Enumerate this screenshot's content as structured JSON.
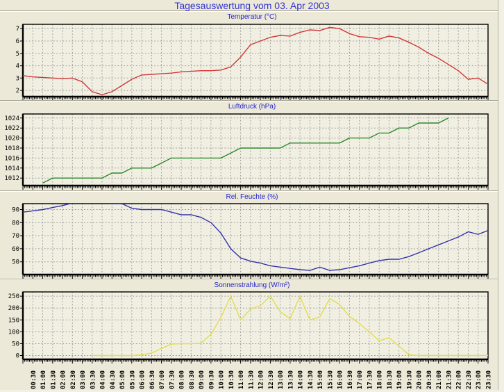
{
  "page": {
    "title": "Tagesauswertung vom 03. Apr 2003",
    "title_color": "#3535cf",
    "background": "#ece9d8"
  },
  "x_axis": {
    "start": "00:00",
    "step_minutes": 30,
    "labels": [
      "00:30",
      "01:00",
      "01:30",
      "02:00",
      "02:30",
      "03:00",
      "03:30",
      "04:00",
      "04:30",
      "05:00",
      "05:30",
      "06:00",
      "06:30",
      "07:00",
      "07:30",
      "08:00",
      "08:30",
      "09:00",
      "09:30",
      "10:00",
      "10:30",
      "11:00",
      "11:30",
      "12:00",
      "12:30",
      "13:00",
      "13:30",
      "14:00",
      "14:30",
      "15:00",
      "15:30",
      "16:00",
      "16:30",
      "17:00",
      "17:30",
      "18:00",
      "18:30",
      "19:00",
      "19:30",
      "20:00",
      "20:30",
      "21:00",
      "21:30",
      "22:00",
      "22:30",
      "23:00",
      "23:30"
    ]
  },
  "style": {
    "grid_color": "#9c9c9c",
    "plot_bg": "#f1efe2",
    "axis_color": "#000000",
    "label_color": "#000000"
  },
  "chart_data": [
    {
      "type": "line",
      "title": "Temperatur (°C)",
      "series_name": "temperature",
      "color": "#cf3838",
      "ylim": [
        1.5,
        7.35
      ],
      "yticks": [
        2,
        3,
        4,
        5,
        6,
        7
      ],
      "grid": true,
      "legend": false,
      "values": [
        3.2,
        3.1,
        3.05,
        3.0,
        2.95,
        3.0,
        2.7,
        1.9,
        1.65,
        1.9,
        2.4,
        2.9,
        3.25,
        3.3,
        3.35,
        3.4,
        3.5,
        3.55,
        3.6,
        3.6,
        3.65,
        3.9,
        4.7,
        5.7,
        6.0,
        6.3,
        6.45,
        6.4,
        6.7,
        6.9,
        6.85,
        7.1,
        7.0,
        6.6,
        6.35,
        6.3,
        6.15,
        6.4,
        6.25,
        5.9,
        5.5,
        5.0,
        4.6,
        4.1,
        3.6,
        2.9,
        3.0,
        2.5
      ]
    },
    {
      "type": "line",
      "title": "Luftdruck (hPa)",
      "series_name": "air-pressure",
      "color": "#2a8a2a",
      "ylim": [
        1010.5,
        1024.8
      ],
      "yticks": [
        1012,
        1014,
        1016,
        1018,
        1020,
        1022,
        1024
      ],
      "grid": true,
      "legend": false,
      "values": [
        null,
        null,
        1011,
        1012,
        1012,
        1012,
        1012,
        1012,
        1012,
        1013,
        1013,
        1014,
        1014,
        1014,
        1015,
        1016,
        1016,
        1016,
        1016,
        1016,
        1016,
        1017,
        1018,
        1018,
        1018,
        1018,
        1018,
        1019,
        1019,
        1019,
        1019,
        1019,
        1019,
        1020,
        1020,
        1020,
        1021,
        1021,
        1022,
        1022,
        1023,
        1023,
        1023,
        1024,
        null,
        null,
        null,
        null
      ]
    },
    {
      "type": "line",
      "title": "Rel. Feuchte (%)",
      "series_name": "relative-humidity",
      "color": "#3333aa",
      "ylim": [
        40.3,
        94.5
      ],
      "yticks": [
        50,
        60,
        70,
        80,
        90
      ],
      "grid": true,
      "legend": false,
      "values": [
        88,
        89,
        90,
        91.5,
        93,
        95,
        96,
        96,
        96,
        94.5,
        94.5,
        91,
        90,
        90,
        90,
        88,
        86,
        86,
        84,
        80,
        72,
        60,
        53,
        50.5,
        49,
        47,
        46,
        45,
        44,
        43.5,
        46,
        43.5,
        44,
        45.5,
        47,
        49,
        51,
        52,
        52,
        54,
        57,
        60,
        63,
        66,
        69,
        73,
        71,
        74
      ]
    },
    {
      "type": "line",
      "title": "Sonnenstrahlung (W/m²)",
      "series_name": "solar-radiation",
      "color": "#e0de50",
      "ylim": [
        -16,
        268
      ],
      "yticks": [
        0,
        50,
        100,
        150,
        200,
        250
      ],
      "grid": true,
      "legend": false,
      "values": [
        null,
        null,
        null,
        null,
        null,
        null,
        null,
        0,
        0,
        0,
        0,
        0,
        3,
        10,
        30,
        48,
        50,
        50,
        52,
        90,
        160,
        250,
        150,
        195,
        210,
        250,
        185,
        155,
        250,
        150,
        163,
        240,
        215,
        165,
        135,
        100,
        62,
        75,
        40,
        3,
        0,
        0,
        0,
        0,
        0,
        0,
        0,
        0
      ]
    }
  ]
}
